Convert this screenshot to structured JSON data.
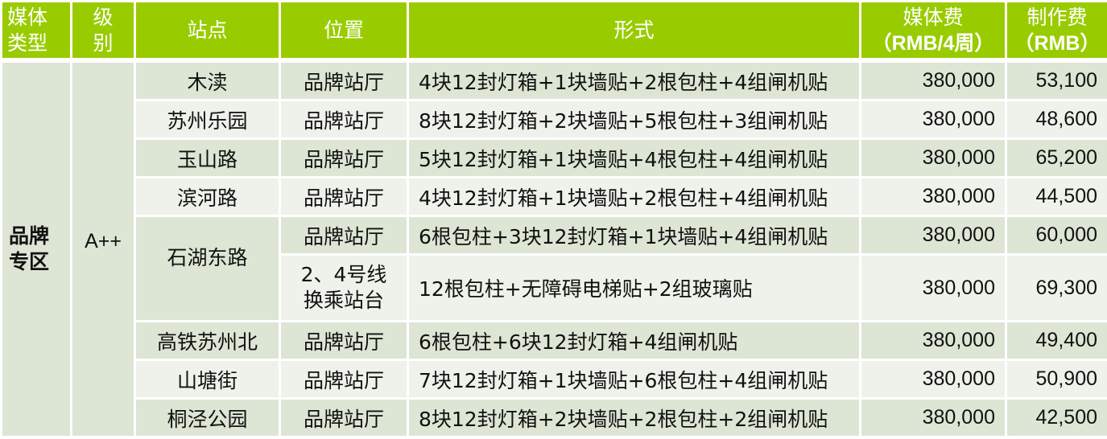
{
  "header": {
    "media_type": [
      "媒体",
      "类型"
    ],
    "level": [
      "级",
      "别"
    ],
    "station": "站点",
    "position": "位置",
    "format": "形式",
    "media_fee": [
      "媒体费",
      "（RMB/4周）"
    ],
    "production_fee": [
      "制作费",
      "（RMB）"
    ]
  },
  "group": {
    "media_type": [
      "品牌",
      "专区"
    ],
    "level": "A++"
  },
  "rows": [
    {
      "station": "木渎",
      "position": "品牌站厅",
      "format": "4块12封灯箱+1块墙贴+2根包柱+4组闸机贴",
      "media_fee": "380,000",
      "production_fee": "53,100"
    },
    {
      "station": "苏州乐园",
      "position": "品牌站厅",
      "format": "8块12封灯箱+2块墙贴+5根包柱+3组闸机贴",
      "media_fee": "380,000",
      "production_fee": "48,600"
    },
    {
      "station": "玉山路",
      "position": "品牌站厅",
      "format": "5块12封灯箱+1块墙贴+4根包柱+4组闸机贴",
      "media_fee": "380,000",
      "production_fee": "65,200"
    },
    {
      "station": "滨河路",
      "position": "品牌站厅",
      "format": "4块12封灯箱+1块墙贴+2根包柱+4组闸机贴",
      "media_fee": "380,000",
      "production_fee": "44,500"
    },
    {
      "station": "石湖东路",
      "position": "品牌站厅",
      "format": "6根包柱+3块12封灯箱+1块墙贴+4组闸机贴",
      "media_fee": "380,000",
      "production_fee": "60,000"
    },
    {
      "station": "",
      "position": [
        "2、4号线",
        "换乘站台"
      ],
      "format": "12根包柱+无障碍电梯贴+2组玻璃贴",
      "media_fee": "380,000",
      "production_fee": "69,300"
    },
    {
      "station": "高铁苏州北",
      "position": "品牌站厅",
      "format": "6根包柱+6块12封灯箱+4组闸机贴",
      "media_fee": "380,000",
      "production_fee": "49,400"
    },
    {
      "station": "山塘街",
      "position": "品牌站厅",
      "format": "7块12封灯箱+1块墙贴+6根包柱+4组闸机贴",
      "media_fee": "380,000",
      "production_fee": "50,900"
    },
    {
      "station": "桐泾公园",
      "position": "品牌站厅",
      "format": "8块12封灯箱+2块墙贴+2根包柱+2组闸机贴",
      "media_fee": "380,000",
      "production_fee": "42,500"
    }
  ],
  "colors": {
    "header": "#99cc00",
    "row_dark": "#dde5d4",
    "row_light": "#eef2ea"
  }
}
